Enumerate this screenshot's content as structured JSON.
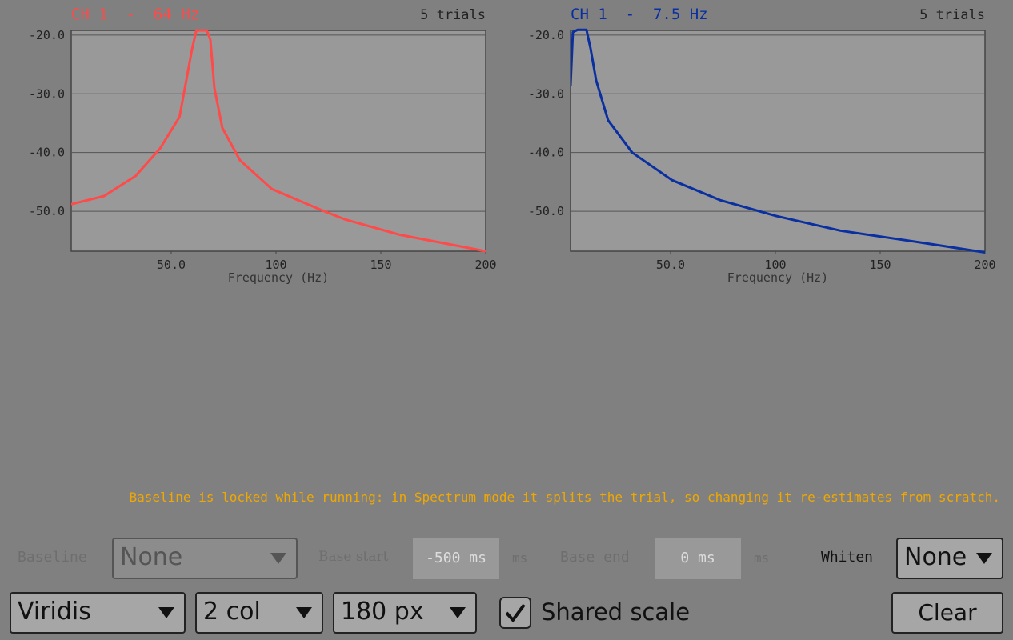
{
  "chart_data": [
    {
      "type": "line",
      "title": "CH 1  -  64 Hz",
      "subtitle": "5 trials",
      "x_label": "Frequency (Hz)",
      "x": [
        2.3,
        18,
        33,
        44.7,
        54,
        60,
        62,
        67,
        68.7,
        70.6,
        74.4,
        82.8,
        98,
        121,
        133,
        159,
        200
      ],
      "series": [
        {
          "name": "CH 1",
          "color": "#ff4a4a",
          "values": [
            -48.8,
            -47.4,
            -44,
            -39.3,
            -33.9,
            -22.3,
            -19.2,
            -19.2,
            -20.8,
            -29,
            -35.8,
            -41.3,
            -46.2,
            -49.7,
            -51.4,
            -54,
            -56.8
          ]
        }
      ],
      "xlim": [
        2.3,
        200
      ],
      "ylim": [
        -56.8,
        -19.2
      ],
      "xticks": [
        {
          "value": 50,
          "label": "50.0"
        },
        100,
        150,
        200
      ],
      "yticks": [
        {
          "value": -20,
          "label": "-20.0"
        },
        {
          "value": -30,
          "label": "-30.0"
        },
        {
          "value": -40,
          "label": "-40.0"
        },
        {
          "value": -50,
          "label": "-50.0"
        }
      ],
      "grid": true
    },
    {
      "type": "line",
      "title": "CH 1  -  7.5 Hz",
      "subtitle": "5 trials",
      "x_label": "Frequency (Hz)",
      "x": [
        2.3,
        3.4,
        5.7,
        9.9,
        11.8,
        14.5,
        20.2,
        31.7,
        50.7,
        73.6,
        100.3,
        131,
        169,
        200
      ],
      "series": [
        {
          "name": "CH 1",
          "color": "#0a2fa0",
          "values": [
            -28.6,
            -19.5,
            -19.1,
            -19.1,
            -22.2,
            -27.7,
            -34.5,
            -40,
            -44.7,
            -48.1,
            -50.8,
            -53.3,
            -55.3,
            -57
          ]
        }
      ],
      "xlim": [
        2.3,
        200
      ],
      "ylim": [
        -56.8,
        -19.2
      ],
      "xticks": [
        {
          "value": 50,
          "label": "50.0"
        },
        100,
        150,
        200
      ],
      "yticks": [
        {
          "value": -20,
          "label": "-20.0"
        },
        {
          "value": -30,
          "label": "-30.0"
        },
        {
          "value": -40,
          "label": "-40.0"
        },
        {
          "value": -50,
          "label": "-50.0"
        }
      ],
      "grid": true
    }
  ],
  "notice": "Baseline is locked while running: in Spectrum mode it splits the trial, so changing it re-estimates from scratch.",
  "controls": {
    "baseline_label": "Baseline",
    "baseline_value": "None",
    "base_start_label": "Base start",
    "base_start_value": "-500 ms",
    "base_start_unit": "ms",
    "base_end_label": "Base end",
    "base_end_value": "0 ms",
    "base_end_unit": "ms",
    "whiten_label": "Whiten",
    "whiten_value": "None",
    "colormap": "Viridis",
    "columns": "2 col",
    "size": "180 px",
    "shared_scale": "Shared scale",
    "shared_scale_checked": true,
    "clear": "Clear"
  }
}
